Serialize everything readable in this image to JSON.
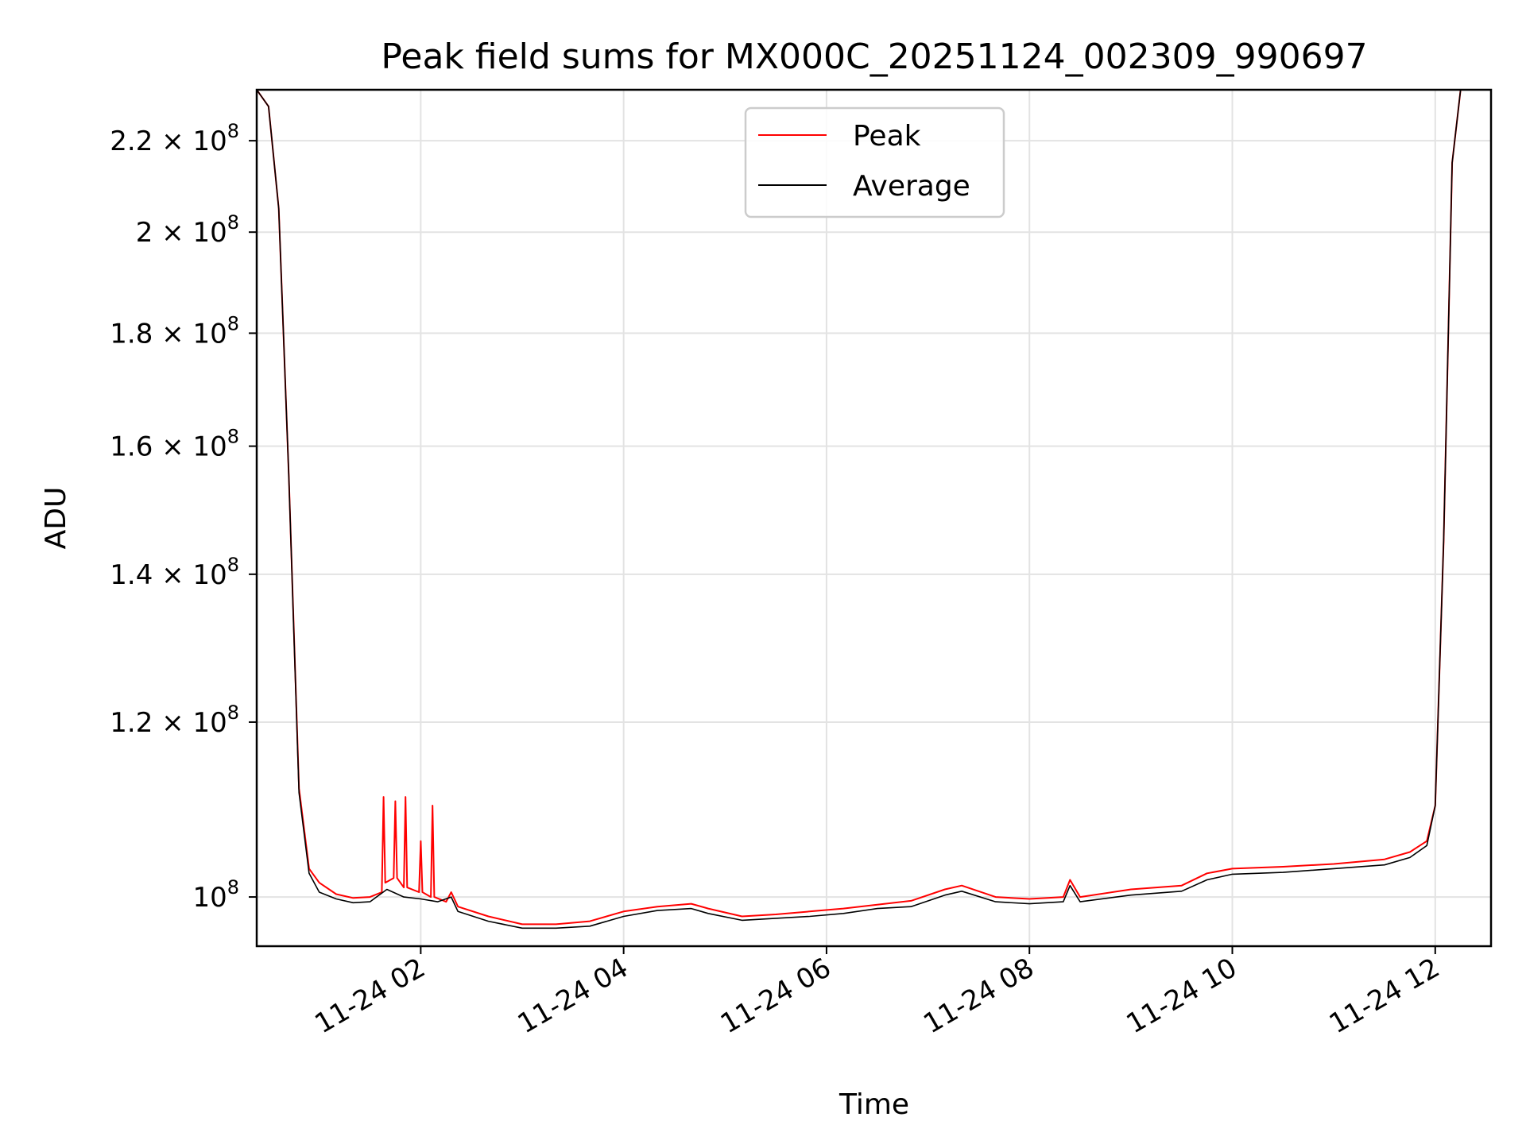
{
  "chart_data": {
    "type": "line",
    "title": "Peak field sums for MX000C_20251124_002309_990697",
    "xlabel": "Time",
    "ylabel": "ADU",
    "yscale": "log",
    "grid": true,
    "legend_position": "upper-center",
    "xlim": [
      "2025-11-24 00:23",
      "2025-11-24 12:33"
    ],
    "ylim": [
      95000000.0,
      232000000.0
    ],
    "x_ticks": [
      {
        "value": "2025-11-24 02:00",
        "label": "11-24 02"
      },
      {
        "value": "2025-11-24 04:00",
        "label": "11-24 04"
      },
      {
        "value": "2025-11-24 06:00",
        "label": "11-24 06"
      },
      {
        "value": "2025-11-24 08:00",
        "label": "11-24 08"
      },
      {
        "value": "2025-11-24 10:00",
        "label": "11-24 10"
      },
      {
        "value": "2025-11-24 12:00",
        "label": "11-24 12"
      }
    ],
    "y_ticks": [
      {
        "value": 100000000.0,
        "mantissa": "",
        "exponent": "8"
      },
      {
        "value": 120000000.0,
        "mantissa": "1.2",
        "exponent": "8"
      },
      {
        "value": 140000000.0,
        "mantissa": "1.4",
        "exponent": "8"
      },
      {
        "value": 160000000.0,
        "mantissa": "1.6",
        "exponent": "8"
      },
      {
        "value": 180000000.0,
        "mantissa": "1.8",
        "exponent": "8"
      },
      {
        "value": 200000000.0,
        "mantissa": "2",
        "exponent": "8"
      },
      {
        "value": 220000000.0,
        "mantissa": "2.2",
        "exponent": "8"
      }
    ],
    "series": [
      {
        "name": "Peak",
        "color": "#ff0000",
        "points": [
          [
            "2025-11-24 00:23",
            232000000.0
          ],
          [
            "2025-11-24 00:30",
            228000000.0
          ],
          [
            "2025-11-24 00:36",
            205000000.0
          ],
          [
            "2025-11-24 00:42",
            155000000.0
          ],
          [
            "2025-11-24 00:48",
            112000000.0
          ],
          [
            "2025-11-24 00:54",
            103000000.0
          ],
          [
            "2025-11-24 01:00",
            101500000.0
          ],
          [
            "2025-11-24 01:10",
            100300000.0
          ],
          [
            "2025-11-24 01:20",
            99900000.0
          ],
          [
            "2025-11-24 01:30",
            100000000.0
          ],
          [
            "2025-11-24 01:37",
            100500000.0
          ],
          [
            "2025-11-24 01:38",
            111000000.0
          ],
          [
            "2025-11-24 01:39",
            101500000.0
          ],
          [
            "2025-11-24 01:44",
            102000000.0
          ],
          [
            "2025-11-24 01:45",
            110500000.0
          ],
          [
            "2025-11-24 01:46",
            102000000.0
          ],
          [
            "2025-11-24 01:50",
            101000000.0
          ],
          [
            "2025-11-24 01:51",
            111000000.0
          ],
          [
            "2025-11-24 01:52",
            101000000.0
          ],
          [
            "2025-11-24 01:59",
            100500000.0
          ],
          [
            "2025-11-24 02:00",
            106000000.0
          ],
          [
            "2025-11-24 02:01",
            100500000.0
          ],
          [
            "2025-11-24 02:06",
            100000000.0
          ],
          [
            "2025-11-24 02:07",
            110000000.0
          ],
          [
            "2025-11-24 02:08",
            100000000.0
          ],
          [
            "2025-11-24 02:15",
            99500000.0
          ],
          [
            "2025-11-24 02:18",
            100500000.0
          ],
          [
            "2025-11-24 02:22",
            99000000.0
          ],
          [
            "2025-11-24 02:40",
            98000000.0
          ],
          [
            "2025-11-24 03:00",
            97200000.0
          ],
          [
            "2025-11-24 03:20",
            97200000.0
          ],
          [
            "2025-11-24 03:40",
            97500000.0
          ],
          [
            "2025-11-24 04:00",
            98500000.0
          ],
          [
            "2025-11-24 04:20",
            99000000.0
          ],
          [
            "2025-11-24 04:40",
            99300000.0
          ],
          [
            "2025-11-24 04:50",
            98800000.0
          ],
          [
            "2025-11-24 05:10",
            98000000.0
          ],
          [
            "2025-11-24 05:30",
            98200000.0
          ],
          [
            "2025-11-24 05:50",
            98500000.0
          ],
          [
            "2025-11-24 06:10",
            98800000.0
          ],
          [
            "2025-11-24 06:30",
            99200000.0
          ],
          [
            "2025-11-24 06:50",
            99600000.0
          ],
          [
            "2025-11-24 07:10",
            100800000.0
          ],
          [
            "2025-11-24 07:20",
            101200000.0
          ],
          [
            "2025-11-24 07:40",
            100000000.0
          ],
          [
            "2025-11-24 08:00",
            99800000.0
          ],
          [
            "2025-11-24 08:20",
            100000000.0
          ],
          [
            "2025-11-24 08:24",
            101800000.0
          ],
          [
            "2025-11-24 08:30",
            100000000.0
          ],
          [
            "2025-11-24 09:00",
            100800000.0
          ],
          [
            "2025-11-24 09:30",
            101200000.0
          ],
          [
            "2025-11-24 09:45",
            102500000.0
          ],
          [
            "2025-11-24 10:00",
            103000000.0
          ],
          [
            "2025-11-24 10:30",
            103200000.0
          ],
          [
            "2025-11-24 11:00",
            103500000.0
          ],
          [
            "2025-11-24 11:30",
            104000000.0
          ],
          [
            "2025-11-24 11:45",
            104800000.0
          ],
          [
            "2025-11-24 11:55",
            106000000.0
          ],
          [
            "2025-11-24 12:00",
            110000000.0
          ],
          [
            "2025-11-24 12:05",
            145000000.0
          ],
          [
            "2025-11-24 12:10",
            215000000.0
          ],
          [
            "2025-11-24 12:15",
            232000000.0
          ],
          [
            "2025-11-24 12:33",
            232000000.0
          ]
        ]
      },
      {
        "name": "Average",
        "color": "#000000",
        "points": [
          [
            "2025-11-24 00:23",
            232000000.0
          ],
          [
            "2025-11-24 00:30",
            228000000.0
          ],
          [
            "2025-11-24 00:36",
            205000000.0
          ],
          [
            "2025-11-24 00:42",
            155000000.0
          ],
          [
            "2025-11-24 00:48",
            111500000.0
          ],
          [
            "2025-11-24 00:54",
            102500000.0
          ],
          [
            "2025-11-24 01:00",
            100500000.0
          ],
          [
            "2025-11-24 01:10",
            99800000.0
          ],
          [
            "2025-11-24 01:20",
            99400000.0
          ],
          [
            "2025-11-24 01:30",
            99500000.0
          ],
          [
            "2025-11-24 01:40",
            100800000.0
          ],
          [
            "2025-11-24 01:50",
            100000000.0
          ],
          [
            "2025-11-24 02:00",
            99800000.0
          ],
          [
            "2025-11-24 02:10",
            99500000.0
          ],
          [
            "2025-11-24 02:18",
            100000000.0
          ],
          [
            "2025-11-24 02:22",
            98500000.0
          ],
          [
            "2025-11-24 02:40",
            97500000.0
          ],
          [
            "2025-11-24 03:00",
            96800000.0
          ],
          [
            "2025-11-24 03:20",
            96800000.0
          ],
          [
            "2025-11-24 03:40",
            97000000.0
          ],
          [
            "2025-11-24 04:00",
            98000000.0
          ],
          [
            "2025-11-24 04:20",
            98600000.0
          ],
          [
            "2025-11-24 04:40",
            98800000.0
          ],
          [
            "2025-11-24 04:50",
            98300000.0
          ],
          [
            "2025-11-24 05:10",
            97600000.0
          ],
          [
            "2025-11-24 05:30",
            97800000.0
          ],
          [
            "2025-11-24 05:50",
            98000000.0
          ],
          [
            "2025-11-24 06:10",
            98300000.0
          ],
          [
            "2025-11-24 06:30",
            98800000.0
          ],
          [
            "2025-11-24 06:50",
            99000000.0
          ],
          [
            "2025-11-24 07:10",
            100200000.0
          ],
          [
            "2025-11-24 07:20",
            100600000.0
          ],
          [
            "2025-11-24 07:40",
            99500000.0
          ],
          [
            "2025-11-24 08:00",
            99300000.0
          ],
          [
            "2025-11-24 08:20",
            99500000.0
          ],
          [
            "2025-11-24 08:24",
            101200000.0
          ],
          [
            "2025-11-24 08:30",
            99500000.0
          ],
          [
            "2025-11-24 09:00",
            100200000.0
          ],
          [
            "2025-11-24 09:30",
            100600000.0
          ],
          [
            "2025-11-24 09:45",
            101800000.0
          ],
          [
            "2025-11-24 10:00",
            102400000.0
          ],
          [
            "2025-11-24 10:30",
            102600000.0
          ],
          [
            "2025-11-24 11:00",
            103000000.0
          ],
          [
            "2025-11-24 11:30",
            103400000.0
          ],
          [
            "2025-11-24 11:45",
            104200000.0
          ],
          [
            "2025-11-24 11:55",
            105500000.0
          ],
          [
            "2025-11-24 12:00",
            110000000.0
          ],
          [
            "2025-11-24 12:05",
            145000000.0
          ],
          [
            "2025-11-24 12:10",
            215000000.0
          ],
          [
            "2025-11-24 12:15",
            232000000.0
          ],
          [
            "2025-11-24 12:33",
            232000000.0
          ]
        ]
      }
    ]
  }
}
